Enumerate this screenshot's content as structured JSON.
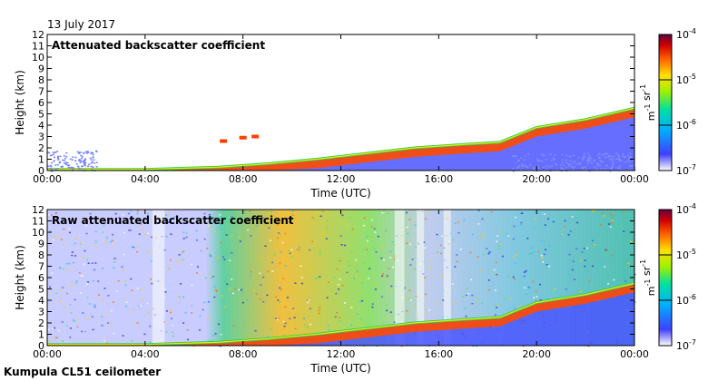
{
  "header": {
    "date": "13 July 2017"
  },
  "footer": {
    "instrument": "Kumpula CL51 ceilometer"
  },
  "chart_data": [
    {
      "type": "heatmap",
      "title": "Attenuated backscatter coefficient",
      "xlabel": "Time (UTC)",
      "ylabel": "Height (km)",
      "x_ticks": [
        "00:00",
        "04:00",
        "08:00",
        "12:00",
        "16:00",
        "20:00",
        "00:00"
      ],
      "y_ticks": [
        "0",
        "1",
        "2",
        "3",
        "4",
        "5",
        "6",
        "7",
        "8",
        "9",
        "10",
        "11",
        "12"
      ],
      "ylim": [
        0,
        12
      ],
      "xlim_hours": [
        0,
        24
      ],
      "colorscale": "log",
      "colorbar": {
        "ticks": [
          "10^-7",
          "10^-6",
          "10^-5",
          "10^-4"
        ],
        "unit": "m-1 sr-1",
        "range": [
          1e-07,
          0.0001
        ]
      },
      "features": {
        "boundary_layer_top_km": [
          [
            0,
            0.1
          ],
          [
            4,
            0.1
          ],
          [
            7,
            0.3
          ],
          [
            9,
            0.6
          ],
          [
            11,
            1.0
          ],
          [
            13,
            1.5
          ],
          [
            15,
            2.0
          ],
          [
            17,
            2.3
          ],
          [
            18.5,
            2.5
          ],
          [
            20,
            3.8
          ],
          [
            22,
            4.5
          ],
          [
            24,
            5.5
          ]
        ],
        "cloud_base_km": [
          [
            7.2,
            2.6
          ],
          [
            8.0,
            2.9
          ],
          [
            8.5,
            3.0
          ]
        ]
      }
    },
    {
      "type": "heatmap",
      "title": "Raw attenuated backscatter coefficient",
      "xlabel": "Time (UTC)",
      "ylabel": "Height (km)",
      "x_ticks": [
        "00:00",
        "04:00",
        "08:00",
        "12:00",
        "16:00",
        "20:00",
        "00:00"
      ],
      "y_ticks": [
        "0",
        "1",
        "2",
        "3",
        "4",
        "5",
        "6",
        "7",
        "8",
        "9",
        "10",
        "11",
        "12"
      ],
      "ylim": [
        0,
        12
      ],
      "xlim_hours": [
        0,
        24
      ],
      "colorscale": "log",
      "colorbar": {
        "ticks": [
          "10^-7",
          "10^-6",
          "10^-5",
          "10^-4"
        ],
        "unit": "m-1 sr-1",
        "range": [
          1e-07,
          0.0001
        ]
      }
    }
  ]
}
